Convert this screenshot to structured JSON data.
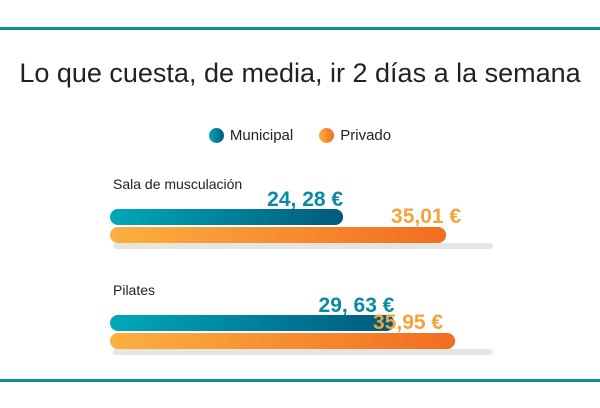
{
  "chart_data": {
    "type": "bar",
    "title": "Lo que cuesta, de media, ir 2 días a la semana",
    "categories": [
      "Sala de musculación",
      "Pilates"
    ],
    "series": [
      {
        "name": "Municipal",
        "values": [
          24.28,
          29.63
        ],
        "labels": [
          "24, 28 €",
          "29, 63 €"
        ],
        "colors": [
          "#00a8b8",
          "#005a7e"
        ]
      },
      {
        "name": "Privado",
        "values": [
          35.01,
          35.95
        ],
        "labels": [
          "35,01 €",
          "35,95 €"
        ],
        "colors": [
          "#fbb040",
          "#f26d21"
        ]
      }
    ],
    "legend": "top-center"
  },
  "colors": {
    "rule": "#0e8aa0",
    "track": "#e6e6e0",
    "municipal_text": "#0a8aa3",
    "private_text": "#f7a239"
  }
}
